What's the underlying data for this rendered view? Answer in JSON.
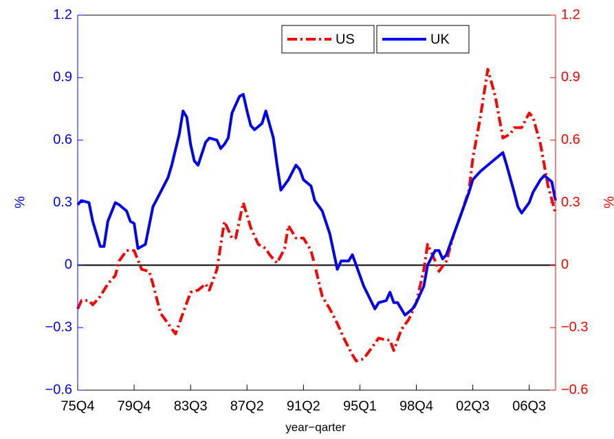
{
  "chart_data": {
    "type": "line",
    "xlabel": "year−qarter",
    "ylabel": "%",
    "y2label": "%",
    "legend": "top",
    "xlim": [
      0,
      127
    ],
    "xticks": [
      {
        "value": 0,
        "label": "75Q4"
      },
      {
        "value": 15,
        "label": "79Q4"
      },
      {
        "value": 30,
        "label": "83Q3"
      },
      {
        "value": 45,
        "label": "87Q2"
      },
      {
        "value": 60,
        "label": "91Q2"
      },
      {
        "value": 75,
        "label": "95Q1"
      },
      {
        "value": 90,
        "label": "98Q4"
      },
      {
        "value": 105,
        "label": "02Q3"
      },
      {
        "value": 120,
        "label": "06Q3"
      }
    ],
    "ylim": [
      -0.6,
      1.2
    ],
    "yticks": [
      {
        "value": -0.6,
        "label": "−0.6"
      },
      {
        "value": -0.3,
        "label": "−0.3"
      },
      0,
      0.3,
      0.6,
      0.9,
      1.2
    ],
    "y2lim": [
      -0.6,
      1.2
    ],
    "y2ticks": [
      {
        "value": -0.6,
        "label": "−0.6"
      },
      {
        "value": -0.3,
        "label": "−0.3"
      },
      0,
      0.3,
      0.6,
      0.9,
      1.2
    ],
    "series": [
      {
        "name": "US",
        "color": "#ff0000",
        "style": "dash-dot",
        "axis": "y2",
        "x": [
          0,
          1,
          3,
          4,
          6,
          8,
          10,
          11,
          13,
          15,
          17,
          19,
          20,
          22,
          24,
          26,
          28,
          30,
          32,
          34,
          35,
          37,
          39,
          41,
          42,
          44,
          46,
          48,
          50,
          51,
          53,
          55,
          56,
          58,
          60,
          62,
          63,
          65,
          67,
          69,
          71,
          73,
          74,
          76,
          78,
          80,
          82,
          83,
          84,
          86,
          88,
          90,
          92,
          93,
          95,
          96,
          98,
          100,
          102,
          104,
          105,
          107,
          109,
          111,
          113,
          115,
          116,
          118,
          120,
          121,
          123,
          125,
          127
        ],
        "values": [
          -0.21,
          -0.17,
          -0.17,
          -0.19,
          -0.15,
          -0.09,
          -0.05,
          0.02,
          0.07,
          0.07,
          -0.02,
          -0.03,
          -0.09,
          -0.23,
          -0.28,
          -0.33,
          -0.23,
          -0.13,
          -0.12,
          -0.09,
          -0.12,
          -0.02,
          0.21,
          0.13,
          0.13,
          0.3,
          0.18,
          0.1,
          0.08,
          0.05,
          0.01,
          0.08,
          0.19,
          0.13,
          0.13,
          0.07,
          0.0,
          -0.15,
          -0.21,
          -0.28,
          -0.36,
          -0.43,
          -0.46,
          -0.45,
          -0.4,
          -0.35,
          -0.36,
          -0.36,
          -0.41,
          -0.31,
          -0.26,
          -0.18,
          -0.02,
          0.1,
          0.02,
          -0.03,
          0.02,
          0.15,
          0.25,
          0.36,
          0.51,
          0.71,
          0.94,
          0.81,
          0.61,
          0.63,
          0.66,
          0.66,
          0.73,
          0.71,
          0.58,
          0.38,
          0.25
        ]
      },
      {
        "name": "UK",
        "color": "#0000ff",
        "style": "solid",
        "x": [
          0,
          1,
          3,
          4,
          6,
          7,
          8,
          10,
          11,
          13,
          14,
          15,
          16,
          18,
          20,
          22,
          24,
          25,
          27,
          28,
          29,
          30,
          31,
          32,
          34,
          35,
          37,
          38,
          39,
          40,
          41,
          43,
          44,
          45,
          46,
          47,
          49,
          50,
          52,
          53,
          54,
          56,
          58,
          59,
          60,
          62,
          63,
          65,
          67,
          69,
          70,
          72,
          73,
          74,
          76,
          79,
          80,
          82,
          83,
          84,
          85,
          87,
          89,
          90,
          92,
          93,
          95,
          96,
          97,
          98,
          100,
          102,
          104,
          105,
          107,
          109,
          111,
          113,
          114,
          116,
          117,
          118,
          120,
          121,
          123,
          124,
          126,
          127
        ],
        "values": [
          0.29,
          0.31,
          0.3,
          0.21,
          0.09,
          0.09,
          0.21,
          0.3,
          0.29,
          0.26,
          0.21,
          0.2,
          0.08,
          0.1,
          0.28,
          0.35,
          0.42,
          0.48,
          0.63,
          0.74,
          0.71,
          0.58,
          0.5,
          0.48,
          0.59,
          0.61,
          0.6,
          0.56,
          0.58,
          0.61,
          0.73,
          0.81,
          0.82,
          0.74,
          0.67,
          0.65,
          0.68,
          0.74,
          0.61,
          0.48,
          0.36,
          0.41,
          0.48,
          0.46,
          0.41,
          0.38,
          0.31,
          0.26,
          0.15,
          -0.02,
          0.02,
          0.02,
          0.05,
          0.0,
          -0.1,
          -0.21,
          -0.18,
          -0.17,
          -0.13,
          -0.18,
          -0.18,
          -0.24,
          -0.21,
          -0.18,
          -0.1,
          0.0,
          0.07,
          0.07,
          0.03,
          0.05,
          0.15,
          0.25,
          0.35,
          0.41,
          0.45,
          0.48,
          0.51,
          0.54,
          0.48,
          0.35,
          0.28,
          0.25,
          0.3,
          0.35,
          0.41,
          0.43,
          0.4,
          0.31
        ]
      }
    ]
  }
}
